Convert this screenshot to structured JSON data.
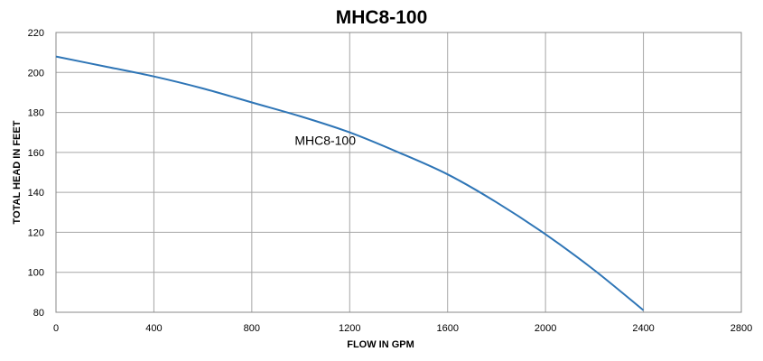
{
  "chart_data": {
    "type": "line",
    "title": "MHC8-100",
    "xlabel": "FLOW IN GPM",
    "ylabel": "TOTAL HEAD IN FEET",
    "xlim": [
      0,
      2800
    ],
    "ylim": [
      80,
      220
    ],
    "x_ticks": [
      0,
      400,
      800,
      1200,
      1600,
      2000,
      2400,
      2800
    ],
    "y_ticks": [
      80,
      100,
      120,
      140,
      160,
      180,
      200,
      220
    ],
    "grid": true,
    "series": [
      {
        "name": "MHC8-100",
        "color": "#2e75b6",
        "x": [
          0,
          200,
          400,
          600,
          800,
          1000,
          1200,
          1400,
          1600,
          1800,
          2000,
          2200,
          2400
        ],
        "values": [
          208,
          203,
          198,
          192,
          185,
          178,
          170,
          160,
          149,
          135,
          119,
          101,
          81
        ]
      }
    ],
    "annotations": [
      {
        "text": "MHC8-100",
        "x": 1100,
        "y": 166
      }
    ]
  }
}
